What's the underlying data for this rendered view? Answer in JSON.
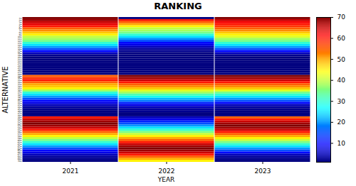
{
  "chart_data": {
    "type": "heatmap",
    "title": "RANKING",
    "xlabel": "YEAR",
    "ylabel": "ALTERNATIVE",
    "color": "jet",
    "x": [
      "2021",
      "2022",
      "2023"
    ],
    "y": [
      1,
      2,
      3,
      4,
      5,
      6,
      7,
      8,
      9,
      10,
      11,
      12,
      13,
      14,
      15,
      16,
      17,
      18,
      19,
      20,
      21,
      22,
      23,
      24,
      25,
      26,
      27,
      28,
      29,
      30,
      31,
      32,
      33,
      34,
      35,
      36,
      37,
      38,
      39,
      40,
      41,
      42,
      43,
      44,
      45,
      46,
      47,
      48,
      49,
      50,
      51,
      52,
      53,
      54,
      55,
      56,
      57,
      58,
      59,
      60,
      61,
      62,
      63,
      64,
      65,
      66,
      67,
      68,
      69,
      70
    ],
    "values": [
      [
        70,
        1,
        70
      ],
      [
        68,
        60,
        65
      ],
      [
        65,
        55,
        62
      ],
      [
        63,
        50,
        60
      ],
      [
        60,
        45,
        58
      ],
      [
        55,
        40,
        55
      ],
      [
        52,
        38,
        52
      ],
      [
        48,
        35,
        48
      ],
      [
        45,
        30,
        45
      ],
      [
        40,
        25,
        42
      ],
      [
        38,
        20,
        38
      ],
      [
        35,
        15,
        35
      ],
      [
        30,
        10,
        30
      ],
      [
        25,
        8,
        25
      ],
      [
        20,
        5,
        20
      ],
      [
        15,
        3,
        15
      ],
      [
        10,
        2,
        10
      ],
      [
        5,
        1,
        5
      ],
      [
        2,
        1,
        2
      ],
      [
        1,
        1,
        1
      ],
      [
        1,
        1,
        1
      ],
      [
        1,
        1,
        1
      ],
      [
        1,
        1,
        1
      ],
      [
        1,
        1,
        1
      ],
      [
        1,
        1,
        1
      ],
      [
        1,
        1,
        1
      ],
      [
        1,
        1,
        1
      ],
      [
        1,
        1,
        1
      ],
      [
        55,
        70,
        70
      ],
      [
        58,
        68,
        68
      ],
      [
        60,
        65,
        65
      ],
      [
        55,
        60,
        60
      ],
      [
        50,
        55,
        55
      ],
      [
        48,
        52,
        52
      ],
      [
        45,
        48,
        48
      ],
      [
        38,
        42,
        42
      ],
      [
        30,
        38,
        35
      ],
      [
        25,
        32,
        30
      ],
      [
        20,
        28,
        25
      ],
      [
        15,
        22,
        20
      ],
      [
        10,
        18,
        15
      ],
      [
        8,
        12,
        10
      ],
      [
        5,
        8,
        5
      ],
      [
        3,
        5,
        3
      ],
      [
        2,
        3,
        2
      ],
      [
        1,
        2,
        1
      ],
      [
        1,
        1,
        1
      ],
      [
        1,
        1,
        1
      ],
      [
        60,
        5,
        55
      ],
      [
        65,
        8,
        60
      ],
      [
        68,
        12,
        65
      ],
      [
        70,
        15,
        68
      ],
      [
        68,
        20,
        70
      ],
      [
        65,
        25,
        68
      ],
      [
        60,
        30,
        65
      ],
      [
        55,
        35,
        60
      ],
      [
        50,
        40,
        55
      ],
      [
        45,
        45,
        50
      ],
      [
        40,
        50,
        45
      ],
      [
        35,
        55,
        40
      ],
      [
        30,
        60,
        35
      ],
      [
        25,
        65,
        30
      ],
      [
        20,
        68,
        25
      ],
      [
        15,
        70,
        20
      ],
      [
        10,
        68,
        15
      ],
      [
        8,
        65,
        10
      ],
      [
        5,
        60,
        5
      ],
      [
        3,
        55,
        3
      ],
      [
        2,
        50,
        2
      ],
      [
        1,
        45,
        1
      ]
    ],
    "colorbar_range": [
      1,
      70
    ],
    "colorbar_ticks": [
      10,
      20,
      30,
      40,
      50,
      60,
      70
    ]
  }
}
